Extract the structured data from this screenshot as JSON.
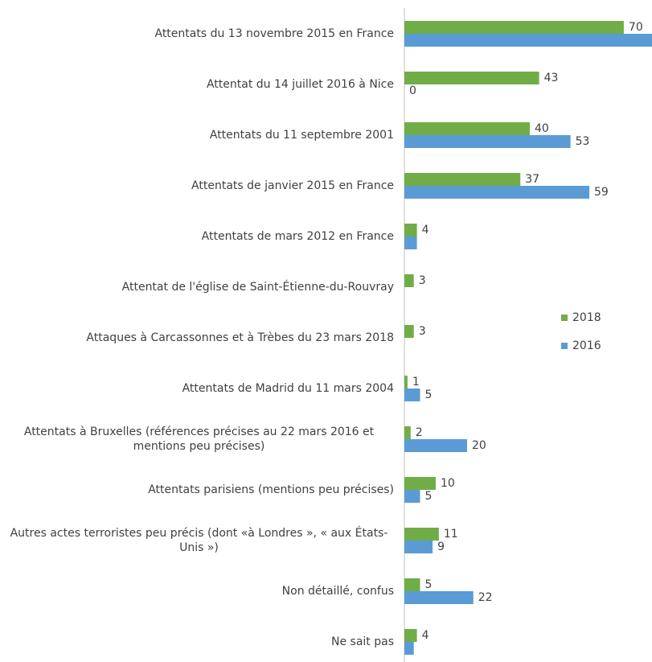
{
  "chart_data": {
    "type": "bar",
    "orientation": "horizontal",
    "categories": [
      "Attentats du 13 novembre 2015 en France",
      "Attentat du 14 juillet 2016 à Nice",
      "Attentats du 11 septembre 2001",
      "Attentats de janvier 2015 en France",
      "Attentats de mars 2012 en France",
      "Attentat de l'église de Saint-Étienne-du-Rouvray",
      "Attaques à Carcassonnes et à Trèbes du 23 mars 2018",
      "Attentats de Madrid du 11 mars 2004",
      "Attentats à Bruxelles (références précises au 22 mars 2016 et mentions peu précises)",
      "Attentats parisiens (mentions peu précises)",
      "Autres actes terroristes peu précis (dont «à Londres », « aux États-Unis »)",
      "Non détaillé, confus",
      "Ne sait pas"
    ],
    "series": [
      {
        "name": "2018",
        "color": "#70ad47",
        "values": [
          70,
          43,
          40,
          37,
          4,
          3,
          3,
          1,
          2,
          10,
          11,
          5,
          4
        ]
      },
      {
        "name": "2016",
        "color": "#5b9bd5",
        "values": [
          82,
          0,
          53,
          59,
          4,
          null,
          null,
          5,
          20,
          5,
          9,
          22,
          3
        ],
        "value_labels": [
          null,
          "0",
          "53",
          "59",
          null,
          null,
          null,
          "5",
          "20",
          "5",
          "9",
          "22",
          null
        ]
      }
    ],
    "xlim": [
      0,
      79
    ],
    "legend": "right"
  }
}
